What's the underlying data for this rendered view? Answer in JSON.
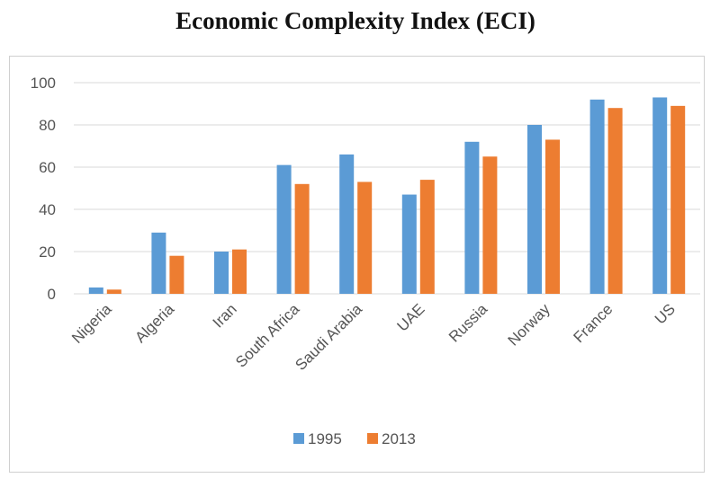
{
  "chart_data": {
    "type": "bar",
    "title": "Economic Complexity Index (ECI)",
    "categories": [
      "Nigeria",
      "Algeria",
      "Iran",
      "South Africa",
      "Saudi Arabia",
      "UAE",
      "Russia",
      "Norway",
      "France",
      "US"
    ],
    "series": [
      {
        "name": "1995",
        "color": "#5b9bd5",
        "values": [
          3,
          29,
          20,
          61,
          66,
          47,
          72,
          80,
          92,
          93
        ]
      },
      {
        "name": "2013",
        "color": "#ed7d31",
        "values": [
          2,
          18,
          21,
          52,
          53,
          54,
          65,
          73,
          88,
          89
        ]
      }
    ],
    "ylim": [
      0,
      100
    ],
    "yticks": [
      "0",
      "20",
      "40",
      "60",
      "80",
      "100"
    ],
    "grid": true,
    "legend": "bottom"
  }
}
